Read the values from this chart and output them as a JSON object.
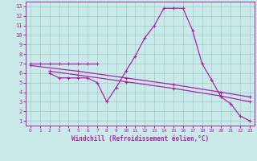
{
  "bg_color": "#caeaea",
  "grid_color": "#a0cccc",
  "line_color": "#aa22aa",
  "spine_color": "#aa22aa",
  "xlim": [
    -0.5,
    23.5
  ],
  "ylim": [
    0.5,
    13.5
  ],
  "xticks": [
    0,
    1,
    2,
    3,
    4,
    5,
    6,
    7,
    8,
    9,
    10,
    11,
    12,
    13,
    14,
    15,
    16,
    17,
    18,
    19,
    20,
    21,
    22,
    23
  ],
  "yticks": [
    1,
    2,
    3,
    4,
    5,
    6,
    7,
    8,
    9,
    10,
    11,
    12,
    13
  ],
  "xlabel": "Windchill (Refroidissement éolien,°C)",
  "series1_x": [
    0,
    1,
    2,
    3,
    4,
    5,
    6,
    7
  ],
  "series1_y": [
    7,
    7,
    7,
    7,
    7,
    7,
    7,
    7
  ],
  "series2_x": [
    2,
    3,
    4,
    5,
    6,
    7,
    8,
    9,
    10,
    11,
    12,
    13,
    14,
    15,
    16,
    17,
    18,
    19,
    20,
    21,
    22,
    23
  ],
  "series2_y": [
    6.0,
    5.5,
    5.5,
    5.5,
    5.5,
    5.0,
    3.0,
    4.5,
    6.2,
    7.8,
    9.7,
    11.0,
    12.8,
    12.8,
    12.8,
    10.5,
    7.0,
    5.3,
    3.5,
    2.8,
    1.5,
    1.0
  ],
  "series3_x": [
    0,
    5,
    10,
    15,
    20,
    23
  ],
  "series3_y": [
    6.8,
    6.2,
    5.5,
    4.8,
    4.0,
    3.5
  ],
  "series4_x": [
    2,
    5,
    10,
    15,
    20,
    23
  ],
  "series4_y": [
    6.2,
    5.8,
    5.1,
    4.4,
    3.6,
    3.0
  ]
}
